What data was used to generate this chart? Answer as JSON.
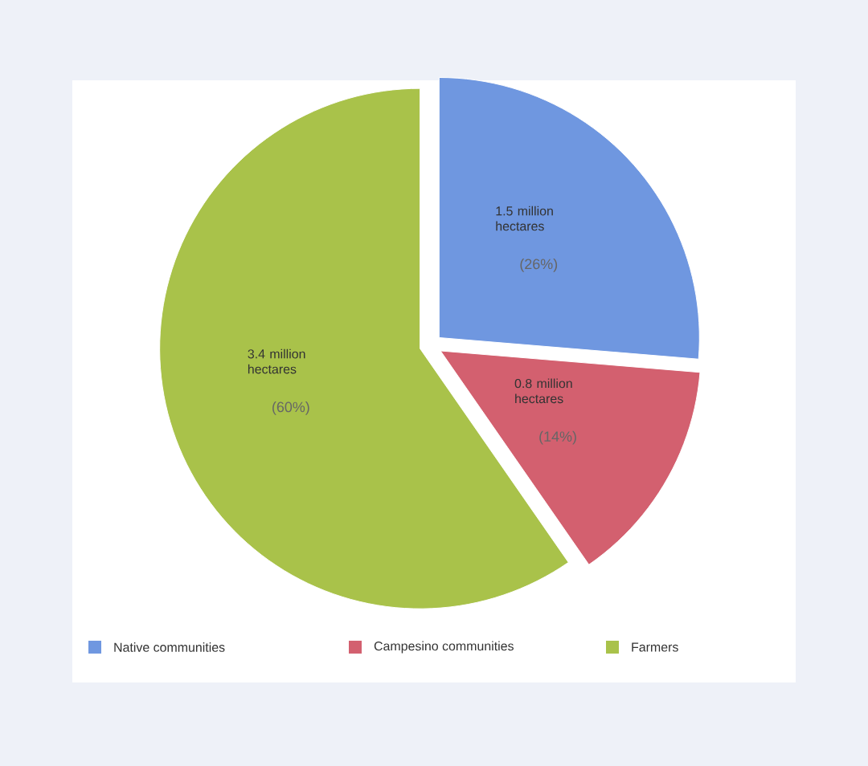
{
  "chart_data": {
    "type": "pie",
    "categories": [
      "Native communities",
      "Campesino communities",
      "Farmers"
    ],
    "values": [
      1.5,
      0.8,
      3.4
    ],
    "colors": [
      "#6f97e0",
      "#d3606f",
      "#a9c24a"
    ],
    "value_labels": [
      "1.5 million hectares",
      "0.8 million hectares",
      "3.4 million hectares"
    ],
    "annotations": [
      "(26%)",
      "(14%)",
      "(60%)"
    ],
    "legend": "bottom"
  }
}
